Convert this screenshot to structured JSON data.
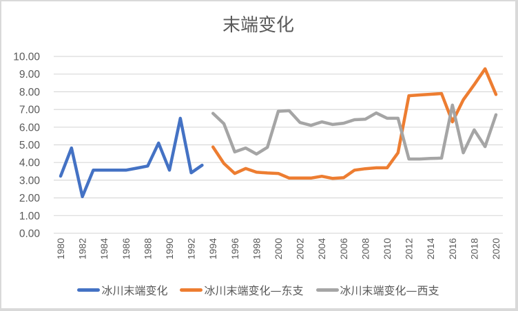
{
  "chart_data": {
    "type": "line",
    "title": "末端变化",
    "xlabel": "",
    "ylabel": "",
    "ylim": [
      0,
      10
    ],
    "yticks": [
      "0.00",
      "1.00",
      "2.00",
      "3.00",
      "4.00",
      "5.00",
      "6.00",
      "7.00",
      "8.00",
      "9.00",
      "10.00"
    ],
    "xtick_labels": [
      "1980",
      "1982",
      "1984",
      "1986",
      "1988",
      "1990",
      "1992",
      "1994",
      "1996",
      "1998",
      "2000",
      "2002",
      "2004",
      "2006",
      "2008",
      "2010",
      "2012",
      "2014",
      "2016",
      "2018",
      "2020"
    ],
    "grid": true,
    "legend_position": "bottom",
    "series": [
      {
        "name": "冰川末端变化",
        "color": "#4472C4",
        "x": [
          1980,
          1981,
          1982,
          1983,
          1984,
          1985,
          1986,
          1987,
          1988,
          1989,
          1990,
          1991,
          1992,
          1993
        ],
        "values": [
          3.23,
          4.82,
          2.07,
          3.57,
          3.57,
          3.57,
          3.57,
          3.68,
          3.8,
          5.1,
          3.57,
          6.5,
          3.42,
          3.85
        ]
      },
      {
        "name": "冰川末端变化—东支",
        "color": "#ED7D31",
        "x": [
          1994,
          1995,
          1996,
          1997,
          1998,
          1999,
          2000,
          2001,
          2002,
          2003,
          2004,
          2005,
          2006,
          2007,
          2008,
          2009,
          2010,
          2011,
          2012,
          2013,
          2014,
          2015,
          2016,
          2017,
          2018,
          2019,
          2020
        ],
        "values": [
          4.88,
          3.95,
          3.38,
          3.66,
          3.45,
          3.41,
          3.38,
          3.12,
          3.12,
          3.12,
          3.22,
          3.1,
          3.14,
          3.57,
          3.65,
          3.7,
          3.7,
          4.55,
          7.78,
          7.82,
          7.86,
          7.9,
          6.3,
          7.55,
          8.4,
          9.3,
          7.85
        ]
      },
      {
        "name": "冰川末端变化—西支",
        "color": "#A5A5A5",
        "x": [
          1994,
          1995,
          1996,
          1997,
          1998,
          1999,
          2000,
          2001,
          2002,
          2003,
          2004,
          2005,
          2006,
          2007,
          2008,
          2009,
          2010,
          2011,
          2012,
          2013,
          2014,
          2015,
          2016,
          2017,
          2018,
          2019,
          2020
        ],
        "values": [
          6.78,
          6.2,
          4.6,
          4.82,
          4.48,
          4.86,
          6.9,
          6.93,
          6.26,
          6.1,
          6.3,
          6.15,
          6.22,
          6.42,
          6.45,
          6.8,
          6.5,
          6.5,
          4.2,
          4.2,
          4.23,
          4.25,
          7.25,
          4.55,
          5.85,
          4.9,
          6.7
        ]
      }
    ]
  }
}
